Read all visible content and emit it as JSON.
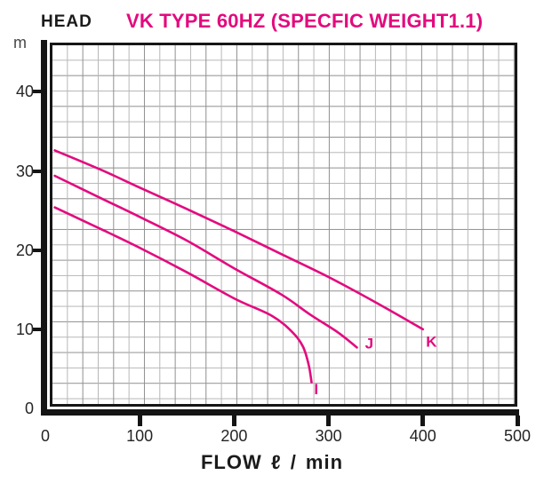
{
  "header": {
    "head_label": "HEAD",
    "title": "VK TYPE 60HZ (SPECFIC WEIGHT1.1)",
    "y_unit": "m"
  },
  "x_axis": {
    "label": "FLOW ℓ / min",
    "ticks": [
      0,
      100,
      200,
      300,
      400,
      500
    ]
  },
  "y_axis": {
    "labels": [
      0,
      10,
      20,
      30,
      40
    ],
    "tick_marks": [
      10,
      20,
      30,
      40
    ]
  },
  "colors": {
    "accent": "#e30a7e",
    "axis": "#141414",
    "grid_dark": "#8f8f8f",
    "grid_light": "#b7b7b7",
    "text": "#252525"
  },
  "chart_data": {
    "type": "line",
    "title": "VK TYPE 60HZ (SPECFIC WEIGHT1.1)",
    "xlabel": "FLOW ℓ / min",
    "ylabel": "HEAD m",
    "xlim": [
      0,
      500
    ],
    "ylim": [
      0,
      46
    ],
    "x_ticks": [
      0,
      100,
      200,
      300,
      400,
      500
    ],
    "y_ticks": [
      0,
      10,
      20,
      30,
      40
    ],
    "grid": true,
    "legend": "inline curve labels",
    "series": [
      {
        "name": "I",
        "points": [
          [
            10,
            25.4
          ],
          [
            60,
            22.6
          ],
          [
            100,
            20.3
          ],
          [
            150,
            17.2
          ],
          [
            200,
            13.9
          ],
          [
            240,
            11.7
          ],
          [
            262,
            9.6
          ],
          [
            273,
            7.8
          ],
          [
            279,
            5.5
          ],
          [
            282,
            3.3
          ]
        ],
        "label_at": [
          287,
          2.4
        ]
      },
      {
        "name": "J",
        "points": [
          [
            10,
            29.4
          ],
          [
            60,
            26.5
          ],
          [
            100,
            24.2
          ],
          [
            150,
            21.2
          ],
          [
            200,
            17.7
          ],
          [
            250,
            14.4
          ],
          [
            280,
            11.9
          ],
          [
            310,
            9.6
          ],
          [
            330,
            7.7
          ]
        ],
        "label_at": [
          343,
          8.2
        ]
      },
      {
        "name": "K",
        "points": [
          [
            10,
            32.6
          ],
          [
            60,
            30.1
          ],
          [
            100,
            27.9
          ],
          [
            150,
            25.2
          ],
          [
            200,
            22.4
          ],
          [
            250,
            19.5
          ],
          [
            300,
            16.6
          ],
          [
            350,
            13.4
          ],
          [
            400,
            10.0
          ]
        ],
        "label_at": [
          409,
          8.4
        ]
      }
    ]
  }
}
